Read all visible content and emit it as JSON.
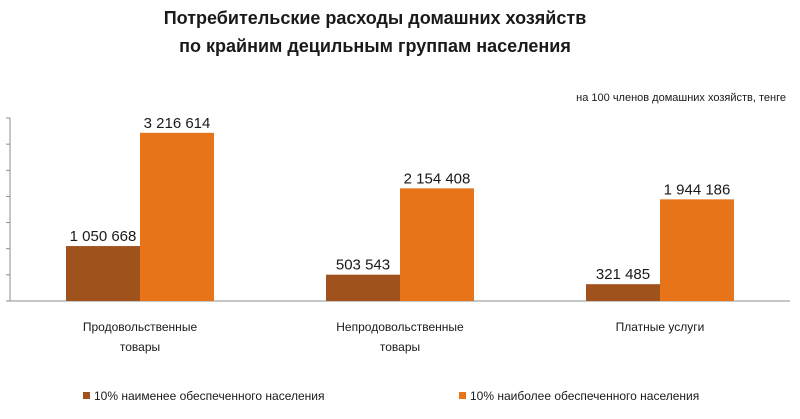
{
  "chart_data": {
    "type": "bar",
    "title_lines": [
      "Потребительские расходы домашних хозяйств",
      "по крайним децильным группам населения"
    ],
    "subtitle": "на 100 членов домашних хозяйств, тенге",
    "categories": [
      [
        "Продовольственные",
        "товары"
      ],
      [
        "Непродовольственные",
        "товары"
      ],
      [
        "Платные услуги"
      ]
    ],
    "series": [
      {
        "name": "10% наименее обеспеченного населения",
        "color": "#A0521C",
        "values": [
          1050668,
          503543,
          321485
        ],
        "labels": [
          "1 050 668",
          "503 543",
          "321 485"
        ]
      },
      {
        "name": "10% наиболее обеспеченного населения",
        "color": "#E8741A",
        "values": [
          3216614,
          2154408,
          1944186
        ],
        "labels": [
          "3 216 614",
          "2 154 408",
          "1 944 186"
        ]
      }
    ],
    "ylim": [
      0,
      3500000
    ],
    "y_tick_step": 500000,
    "grid": false,
    "legend_position": "bottom"
  }
}
